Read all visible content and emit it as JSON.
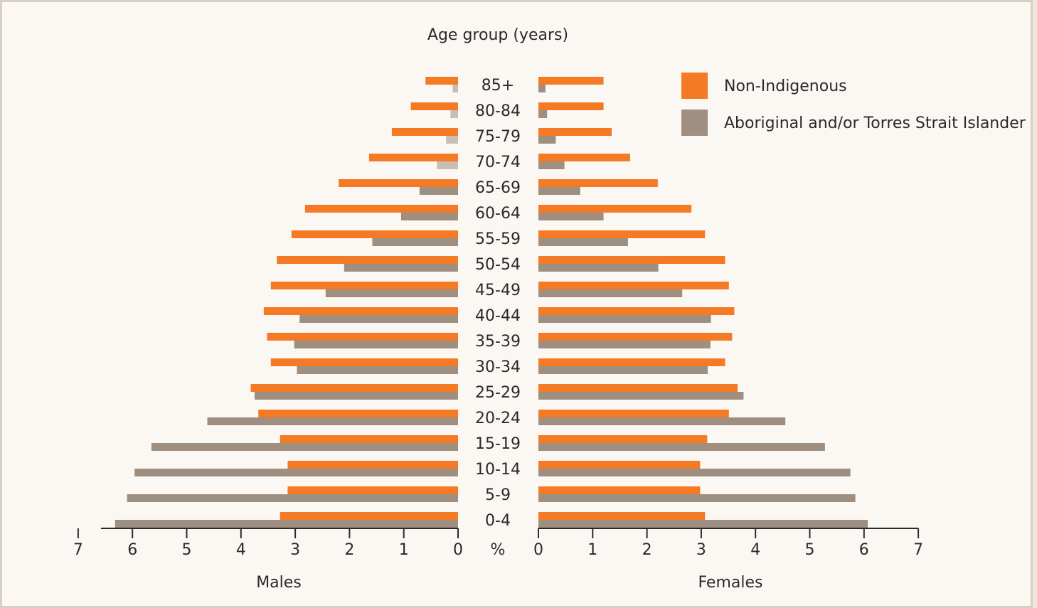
{
  "chart_data": {
    "type": "bar",
    "orientation": "horizontal",
    "layout": "population-pyramid",
    "title": "Age group (years)",
    "unit_label": "%",
    "left_panel_label": "Males",
    "right_panel_label": "Females",
    "categories": [
      "85+",
      "80-84",
      "75-79",
      "70-74",
      "65-69",
      "60-64",
      "55-59",
      "50-54",
      "45-49",
      "40-44",
      "35-39",
      "30-34",
      "25-29",
      "20-24",
      "15-19",
      "10-14",
      "5-9",
      "0-4"
    ],
    "series": [
      {
        "name": "Non-Indigenous",
        "color": "#f47a25",
        "males": [
          0.6,
          0.87,
          1.22,
          1.64,
          2.2,
          2.82,
          3.07,
          3.34,
          3.45,
          3.58,
          3.52,
          3.45,
          3.82,
          3.68,
          3.28,
          3.14,
          3.14,
          3.28
        ],
        "females": [
          1.2,
          1.2,
          1.35,
          1.69,
          2.2,
          2.82,
          3.07,
          3.44,
          3.51,
          3.61,
          3.57,
          3.44,
          3.67,
          3.51,
          3.11,
          2.98,
          2.98,
          3.07
        ]
      },
      {
        "name": "Aboriginal and/or Torres Strait Islander",
        "color": "#9e8f80",
        "males": [
          0.1,
          0.14,
          0.22,
          0.39,
          0.71,
          1.05,
          1.58,
          2.1,
          2.44,
          2.92,
          3.02,
          2.97,
          3.75,
          4.62,
          5.65,
          5.96,
          6.1,
          6.32
        ],
        "females": [
          0.13,
          0.16,
          0.32,
          0.48,
          0.77,
          1.2,
          1.65,
          2.21,
          2.65,
          3.18,
          3.17,
          3.12,
          3.78,
          4.55,
          5.28,
          5.75,
          5.84,
          6.07
        ]
      }
    ],
    "faded_bars_note_color": "#c9beb3",
    "xlim": [
      0,
      7
    ],
    "xticks": [
      0,
      1,
      2,
      3,
      4,
      5,
      6,
      7
    ],
    "legend_position": "top-right"
  }
}
